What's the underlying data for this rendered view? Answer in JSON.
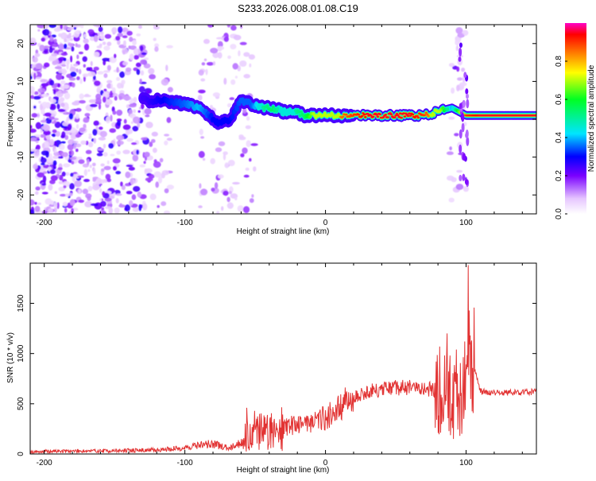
{
  "title": "S233.2026.008.01.08.C19",
  "colors": {
    "snr_line": "#e23333",
    "track_core": "#e0284a",
    "axis": "#000000"
  },
  "chart_data": [
    {
      "id": "spectrogram",
      "type": "heatmap",
      "xlabel": "Height of straight line (km)",
      "ylabel": "Frequency (Hz)",
      "xlim": [
        -210,
        150
      ],
      "ylim": [
        -25,
        25
      ],
      "xticks": [
        -200,
        -100,
        0,
        100
      ],
      "xtick_labels": [
        "-200",
        "-100",
        "0",
        "100"
      ],
      "yticks": [
        -20,
        -10,
        0,
        10,
        20
      ],
      "ytick_labels": [
        "-20",
        "-10",
        "0",
        "10",
        "20"
      ],
      "colorbar": {
        "label": "Normalized spectral amplitude",
        "range": [
          0,
          1
        ],
        "ticks": [
          0.0,
          0.2,
          0.4,
          0.6,
          0.8
        ],
        "tick_labels": [
          "0.0",
          "0.2",
          "0.4",
          "0.6",
          "0.8"
        ]
      },
      "ridge": {
        "heights_km": [
          -128,
          -115,
          -100,
          -90,
          -80,
          -75,
          -68,
          -60,
          -52,
          -45,
          -38,
          -30,
          -22,
          -15,
          -8,
          0,
          10,
          20,
          30,
          40,
          50,
          60,
          70,
          80,
          90,
          100,
          110,
          120,
          130,
          140,
          150
        ],
        "freq_hz": [
          5,
          5,
          4,
          3,
          0,
          -1,
          0,
          5,
          4,
          3,
          3,
          2,
          2,
          1,
          1,
          1,
          1,
          1,
          1,
          1,
          1,
          1,
          1,
          2,
          3,
          1,
          1,
          1,
          1,
          1,
          1
        ],
        "amplitude": [
          0.25,
          0.3,
          0.35,
          0.4,
          0.3,
          0.3,
          0.3,
          0.35,
          0.35,
          0.5,
          0.55,
          0.45,
          0.5,
          0.55,
          0.7,
          0.8,
          0.85,
          0.9,
          0.95,
          0.95,
          0.95,
          0.95,
          0.9,
          0.75,
          0.4,
          0.9,
          0.95,
          0.95,
          0.95,
          0.95,
          0.95
        ]
      }
    },
    {
      "id": "snr",
      "type": "line",
      "xlabel": "Height of straight line (km)",
      "ylabel": "SNR (10 * v/v)",
      "xlim": [
        -210,
        150
      ],
      "ylim": [
        0,
        1900
      ],
      "xticks": [
        -200,
        -100,
        0,
        100
      ],
      "xtick_labels": [
        "-200",
        "-100",
        "0",
        "100"
      ],
      "yticks": [
        0,
        500,
        1000,
        1500
      ],
      "ytick_labels": [
        "0",
        "500",
        "1000",
        "1500"
      ],
      "series": [
        {
          "name": "SNR",
          "x": [
            -210,
            -200,
            -180,
            -160,
            -140,
            -120,
            -100,
            -90,
            -80,
            -70,
            -60,
            -55,
            -50,
            -40,
            -30,
            -20,
            -10,
            0,
            10,
            20,
            30,
            40,
            50,
            60,
            70,
            80,
            90,
            95,
            100,
            103,
            106,
            110,
            120,
            130,
            140,
            150
          ],
          "y": [
            20,
            25,
            30,
            30,
            35,
            40,
            60,
            90,
            100,
            60,
            110,
            200,
            240,
            230,
            270,
            300,
            330,
            360,
            450,
            560,
            620,
            640,
            660,
            660,
            650,
            640,
            600,
            500,
            700,
            900,
            850,
            620,
            610,
            610,
            615,
            620
          ],
          "spikes": [
            {
              "x": 101.5,
              "y": 1880
            },
            {
              "x": 99.0,
              "y": 1120
            },
            {
              "x": 104.0,
              "y": 1130
            },
            {
              "x": 86.5,
              "y": 1200
            },
            {
              "x": 93.0,
              "y": 1040
            },
            {
              "x": 88.5,
              "y": 980
            },
            {
              "x": -56.0,
              "y": 460
            },
            {
              "x": -47.0,
              "y": 400
            },
            {
              "x": -2.0,
              "y": 470
            }
          ]
        }
      ]
    }
  ]
}
